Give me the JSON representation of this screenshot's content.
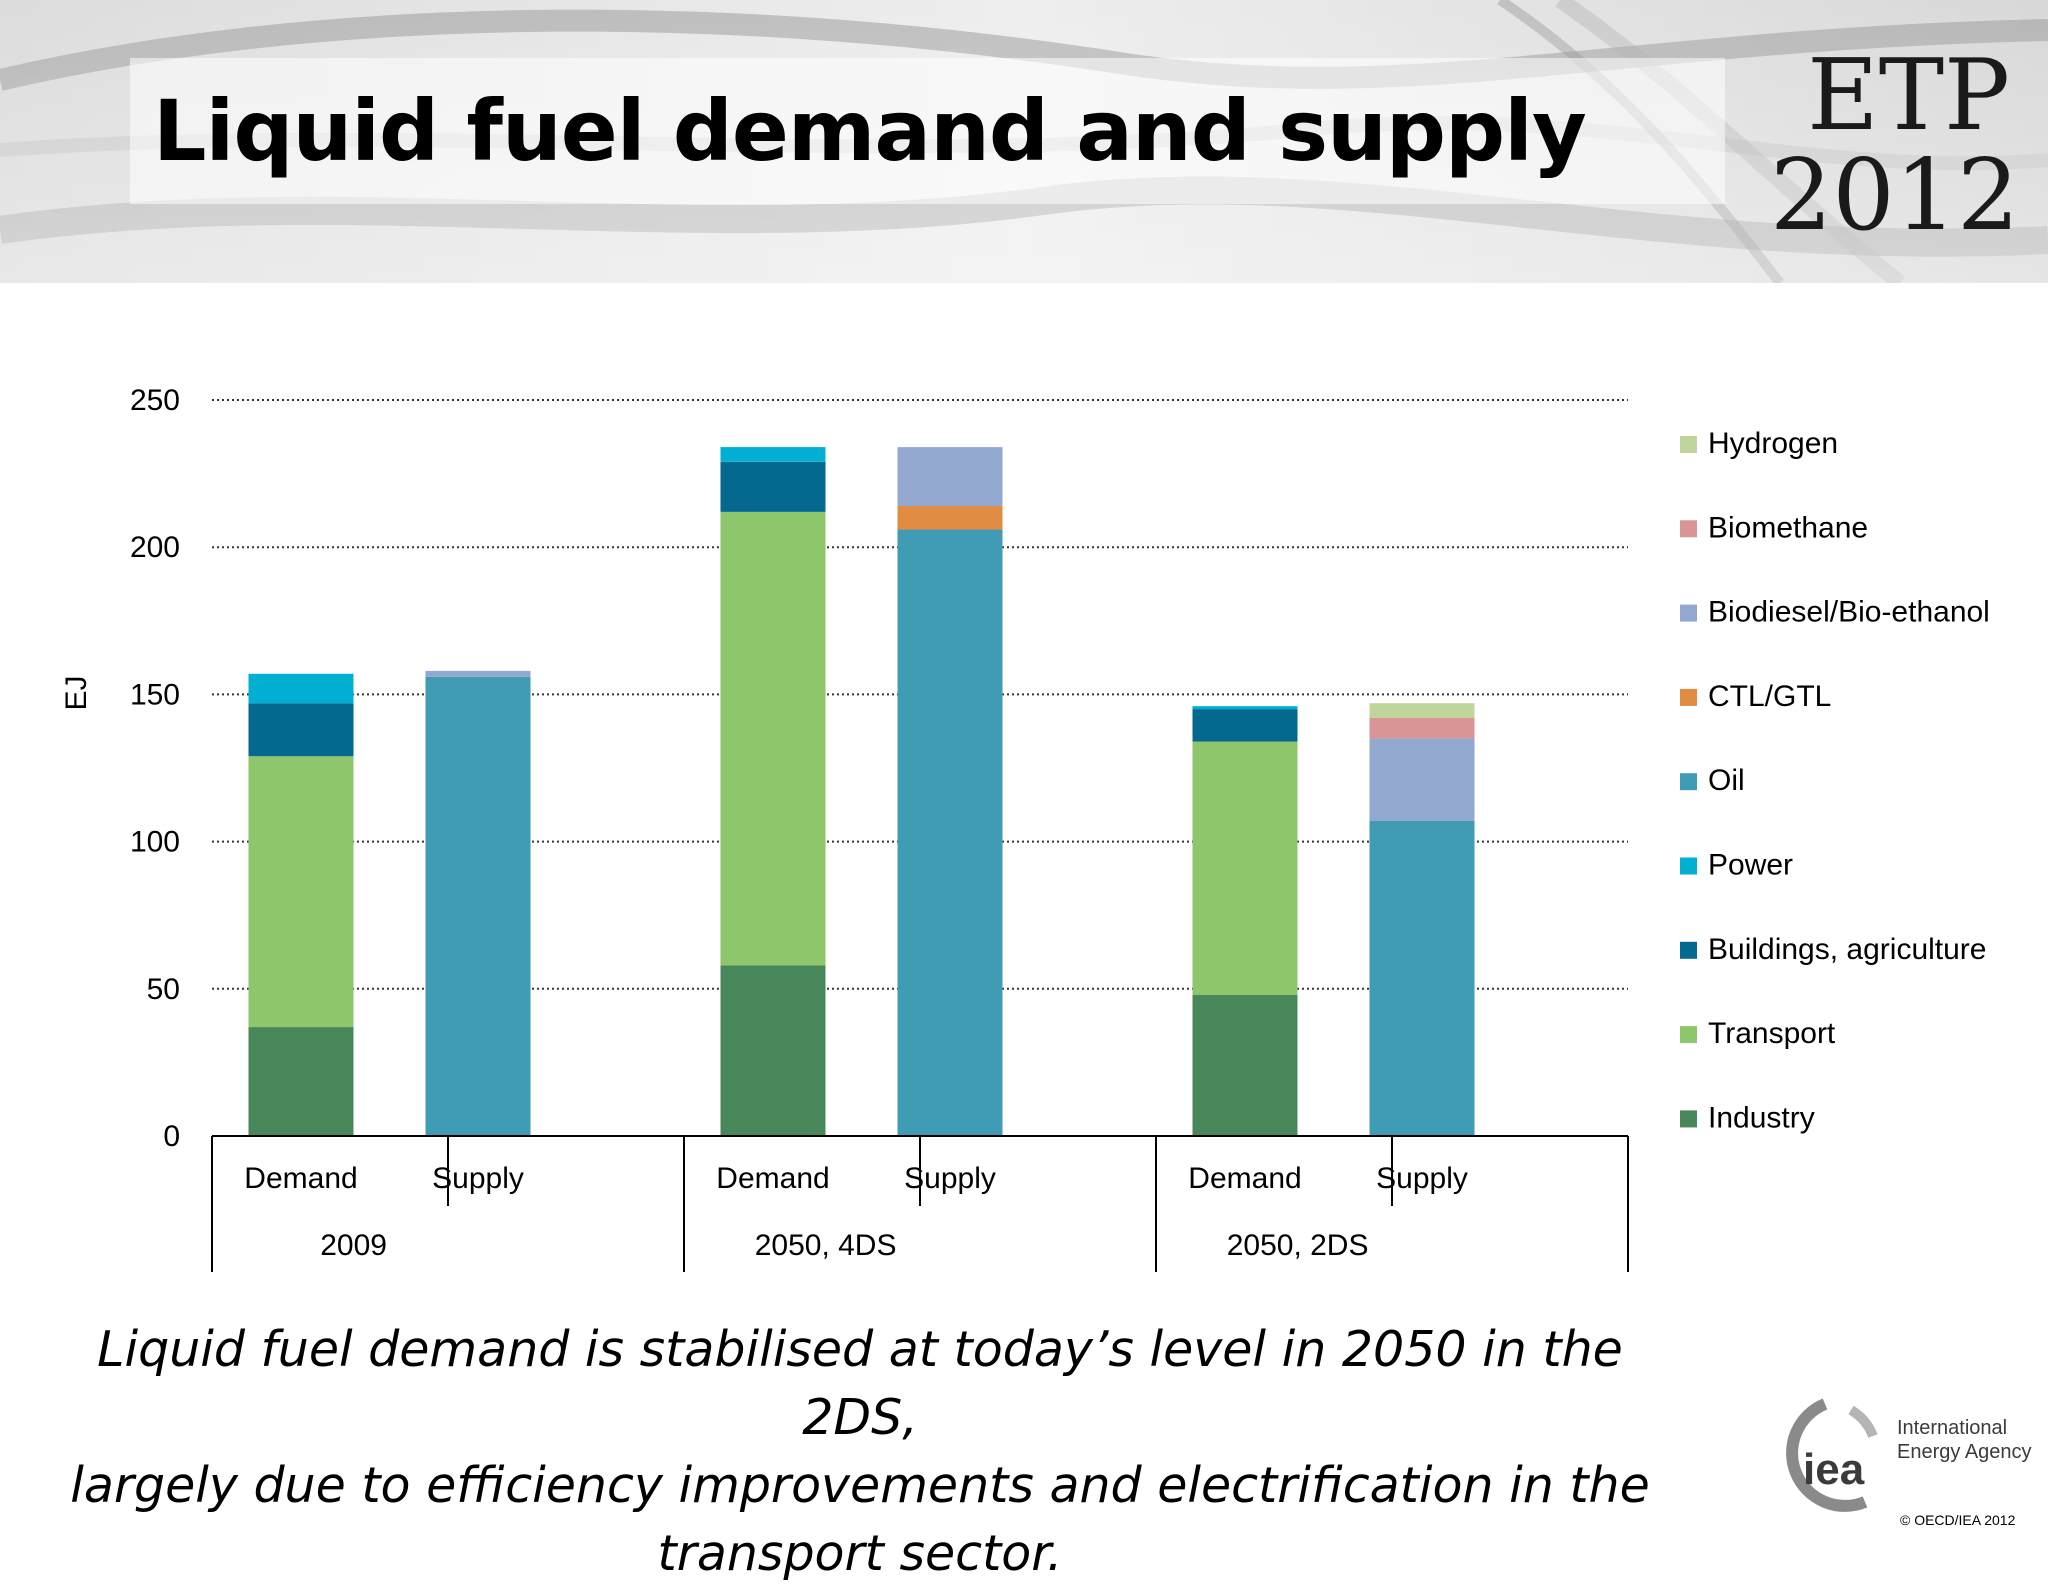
{
  "slide": {
    "title": "Liquid fuel demand and supply",
    "logo_line1": "ETP",
    "logo_line2": "2012",
    "caption_lines": [
      "Liquid fuel demand is stabilised at today’s level in 2050 in the 2DS,",
      "largely  due to efficiency improvements and electrification in the",
      "transport sector."
    ],
    "iea": {
      "mark": "iea",
      "name_line1": "International",
      "name_line2": "Energy Agency"
    },
    "copyright": "© OECD/IEA 2012"
  },
  "chart_data": {
    "type": "bar",
    "stacked": true,
    "ylabel": "EJ",
    "ylim": [
      0,
      250
    ],
    "yticks": [
      0,
      50,
      100,
      150,
      200,
      250
    ],
    "grid": "dotted horizontal",
    "legend_position": "right",
    "groups": [
      "2009",
      "2050, 4DS",
      "2050, 2DS"
    ],
    "bars": [
      "Demand",
      "Supply"
    ],
    "categories": [
      "Demand",
      "Supply",
      "Demand",
      "Supply",
      "Demand",
      "Supply"
    ],
    "series": [
      {
        "name": "Industry",
        "color": "#47875a",
        "values": [
          37,
          0,
          58,
          0,
          48,
          0
        ]
      },
      {
        "name": "Transport",
        "color": "#8dc66b",
        "values": [
          92,
          0,
          154,
          0,
          86,
          0
        ]
      },
      {
        "name": "Buildings, agriculture",
        "color": "#05688f",
        "values": [
          18,
          0,
          17,
          0,
          11,
          0
        ]
      },
      {
        "name": "Power",
        "color": "#00afd2",
        "values": [
          10,
          0,
          5,
          0,
          1,
          0
        ]
      },
      {
        "name": "Oil",
        "color": "#409bb4",
        "values": [
          0,
          156,
          0,
          206,
          0,
          107
        ]
      },
      {
        "name": "CTL/GTL",
        "color": "#e08c43",
        "values": [
          0,
          0,
          0,
          8,
          0,
          0
        ]
      },
      {
        "name": "Biodiesel/Bio-ethanol",
        "color": "#93a8d1",
        "values": [
          0,
          2,
          0,
          20,
          0,
          28
        ]
      },
      {
        "name": "Biomethane",
        "color": "#d99595",
        "values": [
          0,
          0,
          0,
          0,
          0,
          7
        ]
      },
      {
        "name": "Hydrogen",
        "color": "#bfd59c",
        "values": [
          0,
          0,
          0,
          0,
          0,
          5
        ]
      }
    ],
    "legend_order": [
      "Hydrogen",
      "Biomethane",
      "Biodiesel/Bio-ethanol",
      "CTL/GTL",
      "Oil",
      "Power",
      "Buildings, agriculture",
      "Transport",
      "Industry"
    ]
  }
}
